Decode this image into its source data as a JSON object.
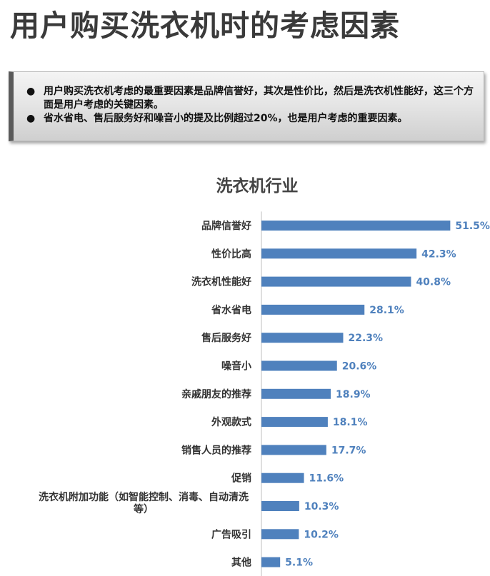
{
  "page": {
    "title": "用户购买洗衣机时的考虑因素"
  },
  "summary": {
    "bullets": [
      "用户购买洗衣机考虑的最重要因素是品牌信誉好，其次是性价比，然后是洗衣机性能好，这三个方面是用户考虑的关键因素。",
      "省水省电、售后服务好和噪音小的提及比例超过20%，也是用户考虑的重要因素。"
    ]
  },
  "chart_data": {
    "type": "bar",
    "orientation": "horizontal",
    "title": "洗衣机行业",
    "categories": [
      "品牌信誉好",
      "性价比高",
      "洗衣机性能好",
      "省水省电",
      "售后服务好",
      "噪音小",
      "亲戚朋友的推荐",
      "外观款式",
      "销售人员的推荐",
      "促销",
      "洗衣机附加功能（如智能控制、消毒、自动清洗等）",
      "广告吸引",
      "其他"
    ],
    "values": [
      51.5,
      42.3,
      40.8,
      28.1,
      22.3,
      20.6,
      18.9,
      18.1,
      17.7,
      11.6,
      10.3,
      10.2,
      5.1
    ],
    "value_labels": [
      "51.5%",
      "42.3%",
      "40.8%",
      "28.1%",
      "22.3%",
      "20.6%",
      "18.9%",
      "18.1%",
      "17.7%",
      "11.6%",
      "10.3%",
      "10.2%",
      "5.1%"
    ],
    "xlim": [
      0,
      60
    ],
    "bar_color": "#4f81bd",
    "label_color": "#4f81bd",
    "grid": false,
    "legend": "none"
  }
}
